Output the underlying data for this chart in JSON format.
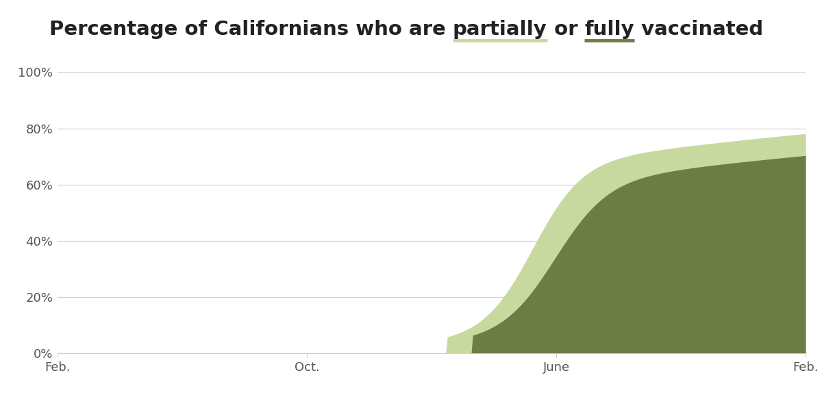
{
  "partial_color": "#c8d9a0",
  "full_color": "#6b7c45",
  "background_color": "#ffffff",
  "grid_color": "#cccccc",
  "yticks": [
    0,
    20,
    40,
    60,
    80,
    100
  ],
  "ytick_labels": [
    "0%",
    "20%",
    "40%",
    "60%",
    "80%",
    "100%"
  ],
  "xtick_labels": [
    "Feb.",
    "Oct.",
    "June",
    "Feb."
  ],
  "ylim": [
    0,
    100
  ],
  "final_partial": 78.1,
  "final_full": 70.3,
  "n_points": 500,
  "title_prefix": "Percentage of Californians who are ",
  "title_partial": "partially",
  "title_or": " or ",
  "title_fully": "fully",
  "title_suffix": " vaccinated",
  "title_fontsize": 21,
  "tick_fontsize": 13,
  "title_color": "#222222",
  "tick_color": "#555555"
}
